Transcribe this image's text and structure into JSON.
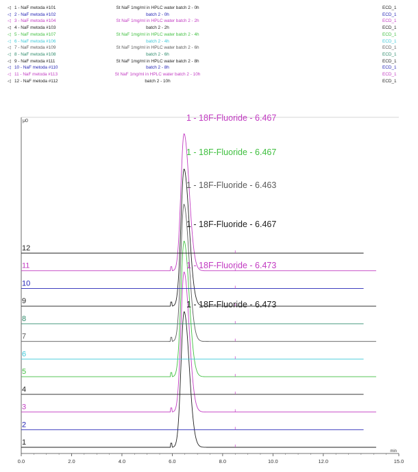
{
  "chart_data": {
    "type": "line",
    "title": "",
    "xlabel": "min",
    "ylabel": "",
    "y_unit_label": "μ0",
    "xlim": [
      0,
      15
    ],
    "x_ticks": [
      "0.0",
      "2.0",
      "4.0",
      "6.0",
      "8.0",
      "10.0",
      "12.0",
      "15.0"
    ],
    "legend_placement": "top",
    "series": [
      {
        "label": "1 - NaF  metoda #101",
        "description": "St NaF 1mg/ml in HPLC water batch 2 - 0h",
        "detector": "ECD_1",
        "color": "#1f1f1f",
        "baseline_label": "1",
        "peak_rt": 6.47,
        "peak_rel": 0.92,
        "peak_annotation": ""
      },
      {
        "label": "2 - NaF  metoda #102",
        "description": "batch 2 - 0h",
        "detector": "ECD_1",
        "color": "#2323b5",
        "baseline_label": "2",
        "peak_rt": 6.47,
        "peak_rel": 0.0,
        "peak_annotation": ""
      },
      {
        "label": "3 - NaF  metoda #104",
        "description": "St NaF 1mg/ml in HPLC water batch 2 - 2h",
        "detector": "ECD_1",
        "color": "#c23bc2",
        "baseline_label": "3",
        "peak_rt": 6.467,
        "peak_rel": 0.95,
        "peak_annotation": "1 - 18F-Fluoride - 6.467"
      },
      {
        "label": "4 - NaF  metoda #103",
        "description": "batch 2 - 2h",
        "detector": "ECD_1",
        "color": "#1f1f1f",
        "baseline_label": "4",
        "peak_rt": 6.467,
        "peak_rel": 0.0,
        "peak_annotation": ""
      },
      {
        "label": "5 - NaF  metoda #107",
        "description": "St NaF 1mg/ml in HPLC water batch 2 - 4h",
        "detector": "ECD_1",
        "color": "#3fbf3f",
        "baseline_label": "5",
        "peak_rt": 6.467,
        "peak_rel": 0.92,
        "peak_annotation": "1 - 18F-Fluoride - 6.467"
      },
      {
        "label": "6 - NaF  metoda #106",
        "description": "batch 2 - 4h",
        "detector": "ECD_1",
        "color": "#3cc8d8",
        "baseline_label": "6",
        "peak_rt": 6.46,
        "peak_rel": 0.0,
        "peak_annotation": ""
      },
      {
        "label": "7 - NaF  metoda #109",
        "description": "St NaF 1mg/ml in HPLC water batch 2 - 6h",
        "detector": "ECD_1",
        "color": "#5a5a5a",
        "baseline_label": "7",
        "peak_rt": 6.463,
        "peak_rel": 0.93,
        "peak_annotation": "1 - 18F-Fluoride - 6.463"
      },
      {
        "label": "8 - NaF  metoda #108",
        "description": "batch 2 - 6h",
        "detector": "ECD_1",
        "color": "#2e8b6b",
        "baseline_label": "8",
        "peak_rt": 6.46,
        "peak_rel": 0.0,
        "peak_annotation": ""
      },
      {
        "label": "9 - NaF  metoda #111",
        "description": "St NaF 1mg/ml in HPLC water batch 2 - 8h",
        "detector": "ECD_1",
        "color": "#1f1f1f",
        "baseline_label": "9",
        "peak_rt": 6.467,
        "peak_rel": 0.93,
        "peak_annotation": "1 - 18F-Fluoride - 6.467"
      },
      {
        "label": "10 - NaF  metoda #110",
        "description": "batch 2 - 8h",
        "detector": "ECD_1",
        "color": "#2323b5",
        "baseline_label": "10",
        "peak_rt": 6.46,
        "peak_rel": 0.0,
        "peak_annotation": ""
      },
      {
        "label": "11 - NaF  metoda #113",
        "description": "St NaF 1mg/ml in HPLC water batch 2 - 10h",
        "detector": "ECD_1",
        "color": "#c23bc2",
        "baseline_label": "11",
        "peak_rt": 6.467,
        "peak_rel": 0.93,
        "peak_annotation": "1 - 18F-Fluoride - 6.467"
      },
      {
        "label": "12 - NaF  metoda #112",
        "description": "batch 2 - 10h",
        "detector": "ECD_1",
        "color": "#1f1f1f",
        "baseline_label": "12",
        "peak_rt": 6.46,
        "peak_rel": 0.0,
        "peak_annotation": ""
      }
    ],
    "overlay_annotations": [
      {
        "text": "1 - 18F-Fluoride - 6.473",
        "color": "#c23bc2"
      },
      {
        "text": "1 - 18F-Fluoride - 6.473",
        "color": "#1f1f1f"
      }
    ]
  }
}
